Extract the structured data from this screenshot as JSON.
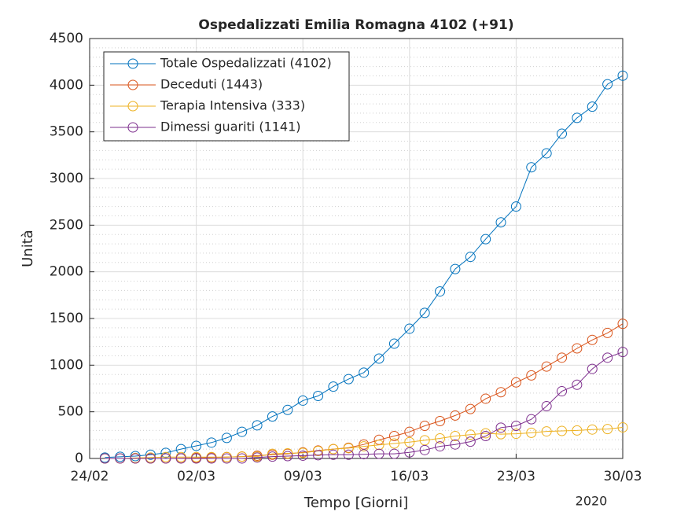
{
  "chart_data": {
    "type": "line",
    "title": "Ospedalizzati Emilia Romagna 4102 (+91)",
    "xlabel": "Tempo [Giorni]",
    "ylabel": "Unità",
    "year_label": "2020",
    "x": [
      "2020-02-25",
      "2020-02-26",
      "2020-02-27",
      "2020-02-28",
      "2020-02-29",
      "2020-03-01",
      "2020-03-02",
      "2020-03-03",
      "2020-03-04",
      "2020-03-05",
      "2020-03-06",
      "2020-03-07",
      "2020-03-08",
      "2020-03-09",
      "2020-03-10",
      "2020-03-11",
      "2020-03-12",
      "2020-03-13",
      "2020-03-14",
      "2020-03-15",
      "2020-03-16",
      "2020-03-17",
      "2020-03-18",
      "2020-03-19",
      "2020-03-20",
      "2020-03-21",
      "2020-03-22",
      "2020-03-23",
      "2020-03-24",
      "2020-03-25",
      "2020-03-26",
      "2020-03-27",
      "2020-03-28",
      "2020-03-29",
      "2020-03-30"
    ],
    "series": [
      {
        "name": "Totale Ospedalizzati (4102)",
        "color": "#0072BD",
        "values": [
          10,
          18,
          25,
          40,
          60,
          100,
          135,
          170,
          220,
          285,
          355,
          450,
          520,
          620,
          670,
          770,
          850,
          920,
          1070,
          1230,
          1390,
          1560,
          1790,
          2030,
          2160,
          2350,
          2530,
          2700,
          3120,
          3270,
          3480,
          3650,
          3770,
          4010,
          4102
        ]
      },
      {
        "name": "Deceduti (1443)",
        "color": "#D95319",
        "values": [
          0,
          0,
          0,
          0,
          0,
          2,
          5,
          10,
          15,
          20,
          30,
          40,
          50,
          65,
          85,
          100,
          115,
          150,
          200,
          240,
          285,
          350,
          400,
          460,
          530,
          640,
          710,
          815,
          890,
          985,
          1080,
          1180,
          1270,
          1345,
          1443
        ]
      },
      {
        "name": "Terapia Intensiva (333)",
        "color": "#EDB120",
        "values": [
          0,
          0,
          5,
          10,
          15,
          15,
          15,
          15,
          15,
          20,
          20,
          50,
          55,
          60,
          80,
          100,
          110,
          130,
          145,
          160,
          175,
          195,
          215,
          240,
          255,
          270,
          260,
          265,
          275,
          290,
          295,
          300,
          310,
          315,
          333
        ]
      },
      {
        "name": "Dimessi guariti (1141)",
        "color": "#7E2F8E",
        "values": [
          0,
          0,
          0,
          0,
          0,
          0,
          0,
          0,
          0,
          0,
          10,
          20,
          25,
          30,
          35,
          40,
          40,
          45,
          50,
          50,
          65,
          90,
          130,
          150,
          180,
          240,
          330,
          350,
          420,
          560,
          720,
          790,
          960,
          1080,
          1141
        ]
      }
    ],
    "xlim": [
      "2020-02-24",
      "2020-03-30"
    ],
    "xticks": [
      {
        "value": "2020-02-24",
        "label": "24/02"
      },
      {
        "value": "2020-03-02",
        "label": "02/03"
      },
      {
        "value": "2020-03-09",
        "label": "09/03"
      },
      {
        "value": "2020-03-16",
        "label": "16/03"
      },
      {
        "value": "2020-03-23",
        "label": "23/03"
      },
      {
        "value": "2020-03-30",
        "label": "30/03"
      }
    ],
    "ylim": [
      0,
      4500
    ],
    "yticks": [
      0,
      500,
      1000,
      1500,
      2000,
      2500,
      3000,
      3500,
      4000,
      4500
    ],
    "grid": true,
    "legend": "upper left"
  }
}
